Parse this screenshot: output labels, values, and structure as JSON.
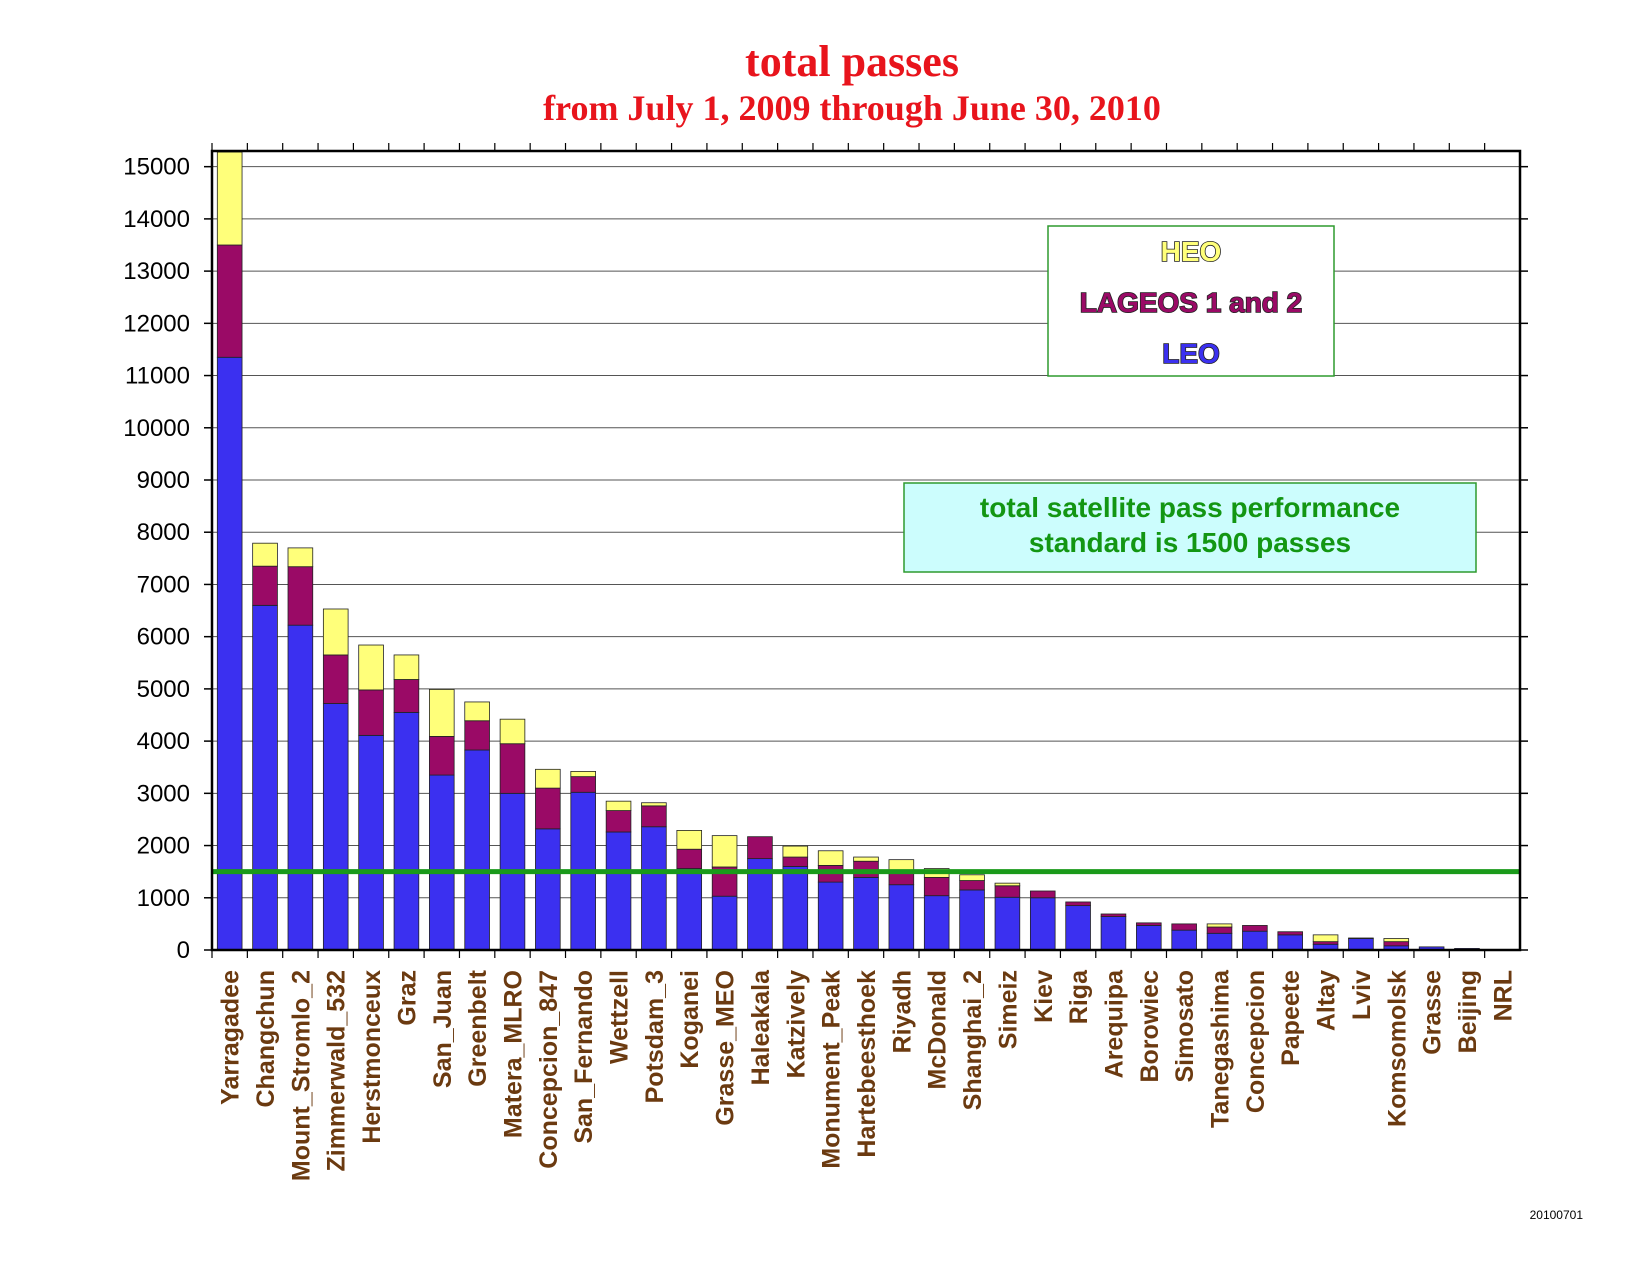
{
  "chart_data": {
    "type": "bar",
    "stacked": true,
    "title": "total passes",
    "subtitle": "from July 1, 2009 through June 30, 2010",
    "xlabel": "",
    "ylabel": "",
    "ylim": [
      0,
      15300
    ],
    "yticks": [
      0,
      1000,
      2000,
      3000,
      4000,
      5000,
      6000,
      7000,
      8000,
      9000,
      10000,
      11000,
      12000,
      13000,
      14000,
      15000
    ],
    "grid": true,
    "categories": [
      "Yarragadee",
      "Changchun",
      "Mount_Stromlo_2",
      "Zimmerwald_532",
      "Herstmonceux",
      "Graz",
      "San_Juan",
      "Greenbelt",
      "Matera_MLRO",
      "Concepcion_847",
      "San_Fernando",
      "Wettzell",
      "Potsdam_3",
      "Koganei",
      "Grasse_MEO",
      "Haleakala",
      "Katzively",
      "Monument_Peak",
      "Hartebeesthoek",
      "Riyadh",
      "McDonald",
      "Shanghai_2",
      "Simeiz",
      "Kiev",
      "Riga",
      "Arequipa",
      "Borowiec",
      "Simosato",
      "Tanegashima",
      "Concepcion",
      "Papeete",
      "Altay",
      "Lviv",
      "Komsomolsk",
      "Grasse",
      "Beijing",
      "NRL"
    ],
    "series": [
      {
        "name": "LEO",
        "color": "#3b30f0",
        "values": [
          11350,
          6600,
          6220,
          4720,
          4110,
          4550,
          3350,
          3830,
          3000,
          2320,
          3020,
          2260,
          2360,
          1560,
          1030,
          1750,
          1600,
          1300,
          1390,
          1250,
          1040,
          1150,
          1010,
          1000,
          850,
          640,
          470,
          380,
          320,
          360,
          290,
          110,
          220,
          80,
          60,
          30,
          5
        ]
      },
      {
        "name": "LAGEOS 1 and 2",
        "color": "#9a0a66",
        "values": [
          2150,
          750,
          1120,
          930,
          870,
          630,
          740,
          560,
          950,
          780,
          300,
          410,
          400,
          370,
          560,
          420,
          180,
          320,
          310,
          270,
          350,
          180,
          220,
          130,
          70,
          50,
          50,
          120,
          120,
          110,
          60,
          50,
          10,
          80,
          0,
          0,
          0
        ]
      },
      {
        "name": "HEO",
        "color": "#ffff7a",
        "values": [
          1780,
          440,
          360,
          880,
          860,
          470,
          900,
          360,
          470,
          360,
          100,
          180,
          60,
          360,
          600,
          0,
          210,
          280,
          80,
          210,
          170,
          110,
          50,
          0,
          0,
          0,
          0,
          0,
          60,
          0,
          0,
          130,
          0,
          60,
          0,
          0,
          0
        ]
      }
    ],
    "legend": {
      "position": "top-right",
      "entries": [
        {
          "label": "HEO",
          "color": "#ffff7a"
        },
        {
          "label": "LAGEOS 1 and 2",
          "color": "#9a0a66"
        },
        {
          "label": "LEO",
          "color": "#3b30f0"
        }
      ]
    },
    "reference_line": {
      "value": 1500,
      "color": "#1a9a1a",
      "label": "total satellite pass performance standard is 1500 passes"
    },
    "annotation_lines": [
      "total satellite pass performance",
      "standard is 1500 passes"
    ]
  },
  "stamp": "20100701",
  "colors": {
    "title": "#e8141c",
    "tick_label": "#6b3a10",
    "legend_border": "#2e9a2e",
    "note_bg": "#ccfdfd"
  }
}
